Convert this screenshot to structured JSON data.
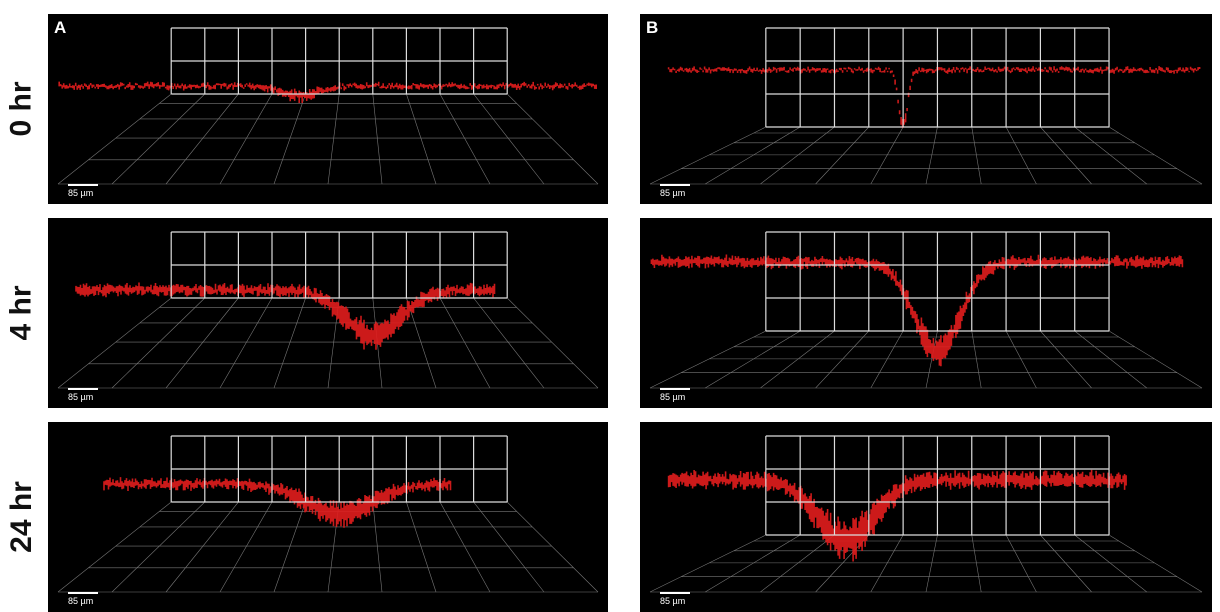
{
  "row_labels": [
    "0 hr",
    "4 hr",
    "24 hr"
  ],
  "panels": [
    {
      "label": "A",
      "scale_bars": [
        "85 µm",
        "85 µm",
        "85 µm"
      ]
    },
    {
      "label": "B",
      "scale_bars": [
        "85 µm",
        "85 µm",
        "85 µm"
      ]
    }
  ]
}
